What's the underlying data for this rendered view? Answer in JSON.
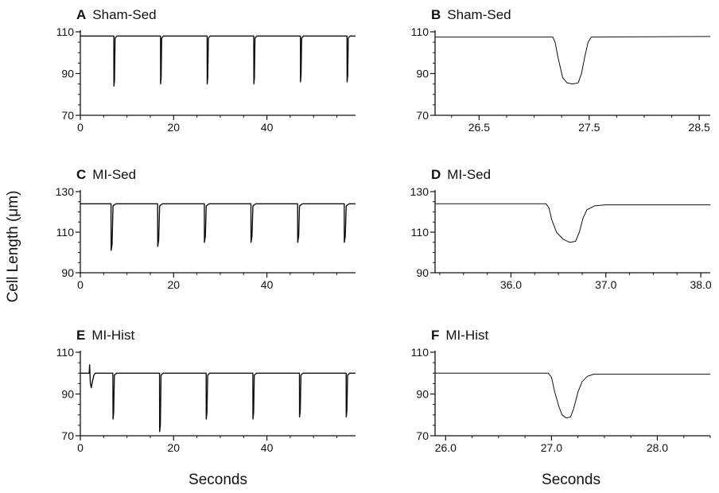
{
  "figure": {
    "ylabel": "Cell Length (μm)",
    "xlabel_left": "Seconds",
    "xlabel_right": "Seconds"
  },
  "chart_data": [
    {
      "panel": "A",
      "title": "Sham-Sed",
      "type": "line",
      "xlim": [
        0,
        59
      ],
      "ylim": [
        70,
        110
      ],
      "xticks": [
        0,
        20,
        40
      ],
      "xtick_labels": [
        "0",
        "20",
        "40"
      ],
      "yticks": [
        70,
        90,
        110
      ],
      "ytick_labels": [
        "70",
        "90",
        "110"
      ],
      "baseline": 108,
      "twitch_times": [
        7.2,
        17.2,
        27.2,
        37.2,
        47.2,
        57.2
      ],
      "twitch_mins": [
        84,
        85,
        85,
        85,
        86,
        86
      ],
      "twitch_width": 0.25
    },
    {
      "panel": "B",
      "title": "Sham-Sed",
      "type": "line",
      "xlim": [
        26.1,
        28.6
      ],
      "ylim": [
        70,
        110
      ],
      "xticks": [
        26.5,
        27.5,
        28.5
      ],
      "xtick_labels": [
        "26.5",
        "27.5",
        "28.5"
      ],
      "yticks": [
        70,
        90,
        110
      ],
      "ytick_labels": [
        "70",
        "90",
        "110"
      ],
      "baseline": 107.5,
      "trace": [
        [
          26.1,
          107.5
        ],
        [
          27.17,
          107.5
        ],
        [
          27.19,
          105
        ],
        [
          27.22,
          97
        ],
        [
          27.26,
          88
        ],
        [
          27.3,
          85.5
        ],
        [
          27.35,
          85
        ],
        [
          27.4,
          85.5
        ],
        [
          27.43,
          90
        ],
        [
          27.46,
          98
        ],
        [
          27.49,
          105
        ],
        [
          27.52,
          107.5
        ],
        [
          28.6,
          107.8
        ]
      ]
    },
    {
      "panel": "C",
      "title": "MI-Sed",
      "type": "line",
      "xlim": [
        0,
        59
      ],
      "ylim": [
        90,
        130
      ],
      "xticks": [
        0,
        20,
        40
      ],
      "xtick_labels": [
        "0",
        "20",
        "40"
      ],
      "yticks": [
        90,
        110,
        130
      ],
      "ytick_labels": [
        "90",
        "110",
        "130"
      ],
      "baseline": 124,
      "twitch_times": [
        6.6,
        16.6,
        26.6,
        36.6,
        46.6,
        56.6
      ],
      "twitch_mins": [
        101,
        103,
        105,
        105,
        105,
        105
      ],
      "twitch_width": 0.4
    },
    {
      "panel": "D",
      "title": "MI-Sed",
      "type": "line",
      "xlim": [
        35.2,
        38.1
      ],
      "ylim": [
        90,
        130
      ],
      "xticks": [
        36.0,
        37.0,
        38.0
      ],
      "xtick_labels": [
        "36.0",
        "37.0",
        "38.0"
      ],
      "yticks": [
        90,
        110,
        130
      ],
      "ytick_labels": [
        "90",
        "110",
        "130"
      ],
      "baseline": 124,
      "trace": [
        [
          35.2,
          124
        ],
        [
          36.37,
          124
        ],
        [
          36.4,
          122
        ],
        [
          36.43,
          116
        ],
        [
          36.48,
          110
        ],
        [
          36.55,
          106.5
        ],
        [
          36.62,
          105
        ],
        [
          36.68,
          105.5
        ],
        [
          36.72,
          110
        ],
        [
          36.76,
          117
        ],
        [
          36.8,
          121
        ],
        [
          36.88,
          123
        ],
        [
          37.0,
          123.5
        ],
        [
          38.1,
          123.5
        ]
      ]
    },
    {
      "panel": "E",
      "title": "MI-Hist",
      "type": "line",
      "xlim": [
        0,
        59
      ],
      "ylim": [
        70,
        110
      ],
      "xticks": [
        0,
        20,
        40
      ],
      "xtick_labels": [
        "0",
        "20",
        "40"
      ],
      "yticks": [
        70,
        90,
        110
      ],
      "ytick_labels": [
        "70",
        "90",
        "110"
      ],
      "baseline": 100,
      "twitch_times": [
        7.0,
        17.0,
        27.0,
        37.0,
        47.0,
        57.0
      ],
      "twitch_mins": [
        78,
        72,
        78,
        78,
        79,
        79
      ],
      "twitch_width": 0.3,
      "artifact": [
        [
          1.9,
          100
        ],
        [
          2.0,
          104
        ],
        [
          2.15,
          95
        ],
        [
          2.35,
          93
        ],
        [
          2.6,
          96
        ],
        [
          2.9,
          99
        ],
        [
          3.2,
          100
        ]
      ]
    },
    {
      "panel": "F",
      "title": "MI-Hist",
      "type": "line",
      "xlim": [
        25.9,
        28.5
      ],
      "ylim": [
        70,
        110
      ],
      "xticks": [
        26.0,
        27.0,
        28.0
      ],
      "xtick_labels": [
        "26.0",
        "27.0",
        "28.0"
      ],
      "yticks": [
        70,
        90,
        110
      ],
      "ytick_labels": [
        "70",
        "90",
        "110"
      ],
      "baseline": 100,
      "trace": [
        [
          25.9,
          100
        ],
        [
          26.97,
          100
        ],
        [
          27.0,
          98
        ],
        [
          27.03,
          91
        ],
        [
          27.07,
          84
        ],
        [
          27.1,
          80
        ],
        [
          27.14,
          78.5
        ],
        [
          27.18,
          79
        ],
        [
          27.21,
          83
        ],
        [
          27.25,
          91
        ],
        [
          27.29,
          96
        ],
        [
          27.34,
          98.5
        ],
        [
          27.4,
          99.5
        ],
        [
          28.5,
          99.5
        ]
      ]
    }
  ]
}
